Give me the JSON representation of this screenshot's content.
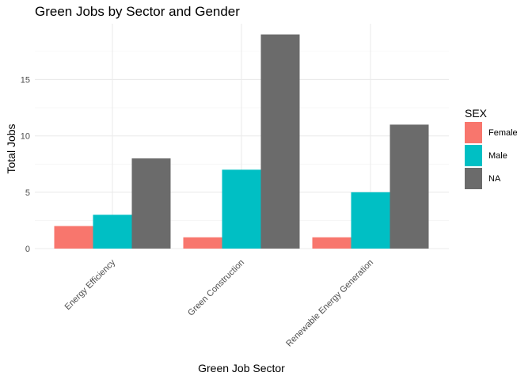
{
  "chart_data": {
    "type": "bar",
    "title": "Green Jobs by Sector and Gender",
    "xlabel": "Green Job Sector",
    "ylabel": "Total Jobs",
    "categories": [
      "Energy Efficiency",
      "Green Construction",
      "Renewable Energy Generation"
    ],
    "series": [
      {
        "name": "Female",
        "color": "#F8766D",
        "values": [
          2,
          1,
          1
        ]
      },
      {
        "name": "Male",
        "color": "#00BFC4",
        "values": [
          3,
          7,
          5
        ]
      },
      {
        "name": "NA",
        "color": "#6B6B6B",
        "values": [
          8,
          19,
          11
        ]
      }
    ],
    "ylim": [
      0,
      19.95
    ],
    "yticks": [
      0,
      5,
      10,
      15
    ],
    "grid": true,
    "legend": {
      "title": "SEX",
      "position": "right"
    }
  }
}
